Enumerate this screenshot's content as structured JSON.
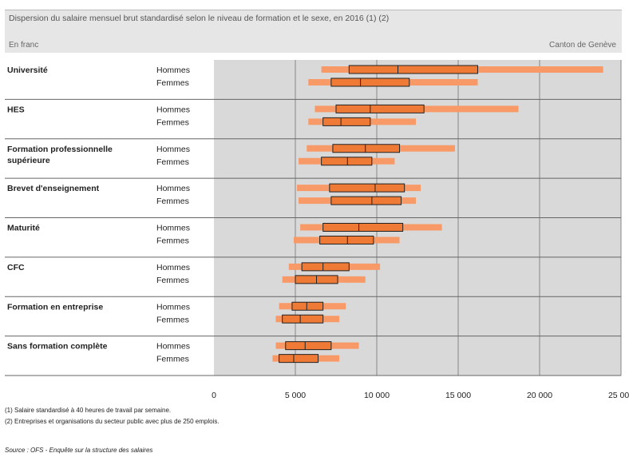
{
  "header": {
    "title": "Dispersion du salaire mensuel brut standardisé selon le niveau de formation et le sexe, en 2016  (1) (2)",
    "unit": "En franc",
    "region": "Canton de Genève"
  },
  "chart_data": {
    "type": "boxplot",
    "title": "Dispersion du salaire mensuel brut standardisé selon le niveau de formation et le sexe, en 2016  (1) (2)",
    "xlim": [
      0,
      25000
    ],
    "xticks": [
      0,
      5000,
      10000,
      15000,
      20000,
      25000
    ],
    "xtick_labels": [
      "0",
      "5 000",
      "10 000",
      "15 000",
      "20 000",
      "25 000"
    ],
    "grid": true,
    "colors": {
      "whisker": "#f79a68",
      "box": "#ee7a35",
      "box_edge": "#222222",
      "plot_bg": "#d9d9d9"
    },
    "value_keys": [
      "p10",
      "q1",
      "median",
      "q3",
      "p90"
    ],
    "groups": [
      {
        "label": "Université",
        "rows": [
          {
            "sex": "Hommes",
            "values": [
              6600,
              8300,
              11300,
              16200,
              23900
            ]
          },
          {
            "sex": "Femmes",
            "values": [
              5800,
              7200,
              9000,
              12000,
              16200
            ]
          }
        ]
      },
      {
        "label": "HES",
        "rows": [
          {
            "sex": "Hommes",
            "values": [
              6200,
              7500,
              9600,
              12900,
              18700
            ]
          },
          {
            "sex": "Femmes",
            "values": [
              5800,
              6700,
              7800,
              9600,
              12400
            ]
          }
        ]
      },
      {
        "label": "Formation professionnelle supérieure",
        "rows": [
          {
            "sex": "Hommes",
            "values": [
              5700,
              7300,
              9300,
              11400,
              14800
            ]
          },
          {
            "sex": "Femmes",
            "values": [
              5200,
              6600,
              8200,
              9700,
              11100
            ]
          }
        ]
      },
      {
        "label": "Brevet d'enseignement",
        "rows": [
          {
            "sex": "Hommes",
            "values": [
              5100,
              7100,
              9900,
              11700,
              12700
            ]
          },
          {
            "sex": "Femmes",
            "values": [
              5200,
              7200,
              9700,
              11500,
              12400
            ]
          }
        ]
      },
      {
        "label": "Maturité",
        "rows": [
          {
            "sex": "Hommes",
            "values": [
              5300,
              6700,
              8900,
              11600,
              14000
            ]
          },
          {
            "sex": "Femmes",
            "values": [
              4900,
              6500,
              8200,
              9800,
              11400
            ]
          }
        ]
      },
      {
        "label": "CFC",
        "rows": [
          {
            "sex": "Hommes",
            "values": [
              4600,
              5400,
              6700,
              8300,
              10200
            ]
          },
          {
            "sex": "Femmes",
            "values": [
              4200,
              5000,
              6300,
              7600,
              9300
            ]
          }
        ]
      },
      {
        "label": "Formation en entreprise",
        "rows": [
          {
            "sex": "Hommes",
            "values": [
              4000,
              4800,
              5700,
              6700,
              8100
            ]
          },
          {
            "sex": "Femmes",
            "values": [
              3800,
              4200,
              5300,
              6700,
              7700
            ]
          }
        ]
      },
      {
        "label": "Sans formation  complète",
        "rows": [
          {
            "sex": "Hommes",
            "values": [
              3800,
              4400,
              5600,
              7200,
              8900
            ]
          },
          {
            "sex": "Femmes",
            "values": [
              3600,
              4000,
              4900,
              6400,
              7700
            ]
          }
        ]
      }
    ]
  },
  "footnotes": [
    "(1) Salaire standardisé à 40 heures de travail par semaine.",
    "(2) Entreprises et organisations du secteur public avec plus de 250 emplois."
  ],
  "source": "Source : OFS - Enquête sur la structure des salaires"
}
